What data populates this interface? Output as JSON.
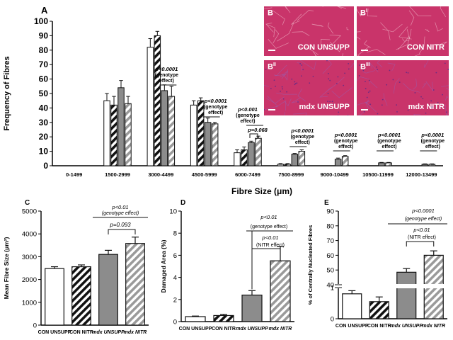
{
  "colors": {
    "white_bar": "#ffffff",
    "stripe_black": "#111111",
    "grey_bar": "#8c8c8c",
    "stripe_grey": "#9a9a9a",
    "micro_tissue": "#c9346a",
    "micro_dark": "#9b2352"
  },
  "chart_data": [
    {
      "panel": "A",
      "type": "bar",
      "xlabel": "Fibre Size (μm)",
      "ylabel": "Frequency of Fibres",
      "ylim": [
        0,
        100
      ],
      "yticks": [
        0,
        10,
        20,
        30,
        40,
        50,
        60,
        70,
        80,
        90,
        100
      ],
      "categories": [
        "0-1499",
        "1500-2999",
        "3000-4499",
        "4500-5999",
        "6000-7499",
        "7500-8999",
        "9000-10499",
        "10500-11999",
        "12000-13499"
      ],
      "series": [
        {
          "name": "CON UNSUPP",
          "pattern": "white",
          "values": [
            0,
            45,
            82,
            42,
            9,
            1,
            0,
            0,
            0
          ],
          "errors": [
            0,
            5,
            6,
            3,
            2,
            0.5,
            0,
            0,
            0
          ]
        },
        {
          "name": "CON NITR",
          "pattern": "stripe-black",
          "values": [
            0,
            42,
            90,
            45,
            11,
            1,
            0,
            0,
            0
          ],
          "errors": [
            0,
            6,
            3,
            2,
            2,
            0.5,
            0,
            0,
            0
          ]
        },
        {
          "name": "mdx UNSUPP",
          "pattern": "grey",
          "values": [
            0,
            54,
            52,
            30,
            16,
            8,
            4.5,
            2,
            1
          ],
          "errors": [
            0,
            5,
            4,
            3,
            1,
            0.5,
            0.8,
            0.3,
            0.3
          ]
        },
        {
          "name": "mdx NITR",
          "pattern": "stripe-grey",
          "values": [
            0,
            43,
            48,
            29,
            19,
            10,
            6.5,
            2,
            1
          ],
          "errors": [
            0,
            5,
            7,
            1,
            1.5,
            1,
            0.5,
            0.3,
            0.3
          ]
        }
      ],
      "annotations": [
        {
          "line1": "p<0.0001",
          "line2": "(genotype",
          "line3": "effect)",
          "cat": "3000-4499"
        },
        {
          "line1": "p<0.0001",
          "line2": "(genotype",
          "line3": "effect)",
          "cat": "4500-5999"
        },
        {
          "line1": "p<0.001",
          "line2": "(genotype",
          "line3": "effect)",
          "cat": "6000-7499"
        },
        {
          "line1": "p=0.068",
          "line2": "",
          "line3": "",
          "cat": "6000-7499"
        },
        {
          "line1": "p<0.0001",
          "line2": "(genotype",
          "line3": "effect)",
          "cat": "7500-8999"
        },
        {
          "line1": "p<0.0001",
          "line2": "(genotype",
          "line3": "effect)",
          "cat": "9000-10499"
        },
        {
          "line1": "p<0.0001",
          "line2": "(genotype",
          "line3": "effect)",
          "cat": "10500-11999"
        },
        {
          "line1": "p<0.0001",
          "line2": "(genotype",
          "line3": "effect)",
          "cat": "12000-13499"
        }
      ]
    },
    {
      "panel": "C",
      "type": "bar",
      "ylabel": "Mean Fibre Size (μm²)",
      "ylim": [
        0,
        5000
      ],
      "yticks": [
        0,
        1000,
        2000,
        3000,
        4000,
        5000
      ],
      "categories": [
        "CON UNSUPP",
        "CON NITR",
        "mdx UNSUPP",
        "mdx NITR"
      ],
      "values": [
        2480,
        2560,
        3100,
        3580
      ],
      "errors": [
        80,
        80,
        180,
        280
      ],
      "annotations": [
        {
          "p": "p<0.01",
          "sub": "(genotype effect)"
        },
        {
          "p": "p=0.093",
          "sub": ""
        }
      ]
    },
    {
      "panel": "D",
      "type": "bar",
      "ylabel": "Damaged Area (%)",
      "ylim": [
        0,
        10
      ],
      "yticks": [
        0,
        2,
        4,
        6,
        8,
        10
      ],
      "categories": [
        "CON UNSUPP",
        "CON NITR",
        "mdx UNSUPP",
        "mdx NITR"
      ],
      "values": [
        0.45,
        0.55,
        2.4,
        5.5
      ],
      "errors": [
        0.05,
        0.1,
        0.4,
        1.3
      ],
      "annotations": [
        {
          "p": "p<0.01",
          "sub": "(genotype effect)"
        },
        {
          "p": "p<0.01",
          "sub": "(NITR effect)"
        }
      ]
    },
    {
      "panel": "E",
      "type": "bar",
      "ylabel": "% of Centrally Nucleated Fibres",
      "ylim": [
        0,
        90
      ],
      "yaxis_break": [
        1,
        40
      ],
      "yticks": [
        "0",
        "1",
        "40",
        "50",
        "60",
        "70",
        "80",
        "90"
      ],
      "categories": [
        "CON UNSUPP",
        "CON NITR",
        "mdx UNSUPP",
        "mdx NITR"
      ],
      "values": [
        0.8,
        0.55,
        48.5,
        60
      ],
      "errors": [
        0.1,
        0.15,
        2.5,
        3
      ],
      "annotations": [
        {
          "p": "p<0.0001",
          "sub": "(genotype effect)"
        },
        {
          "p": "p<0.01",
          "sub": "(NITR effect)"
        }
      ]
    }
  ],
  "panels": {
    "A": "A",
    "C": "C",
    "D": "D",
    "E": "E"
  },
  "micrographs": [
    {
      "label": "B",
      "sup": "",
      "caption": "CON UNSUPP"
    },
    {
      "label": "B",
      "sup": "I",
      "caption": "CON NITR"
    },
    {
      "label": "B",
      "sup": "II",
      "caption": "mdx UNSUPP"
    },
    {
      "label": "B",
      "sup": "III",
      "caption": "mdx NITR"
    }
  ]
}
